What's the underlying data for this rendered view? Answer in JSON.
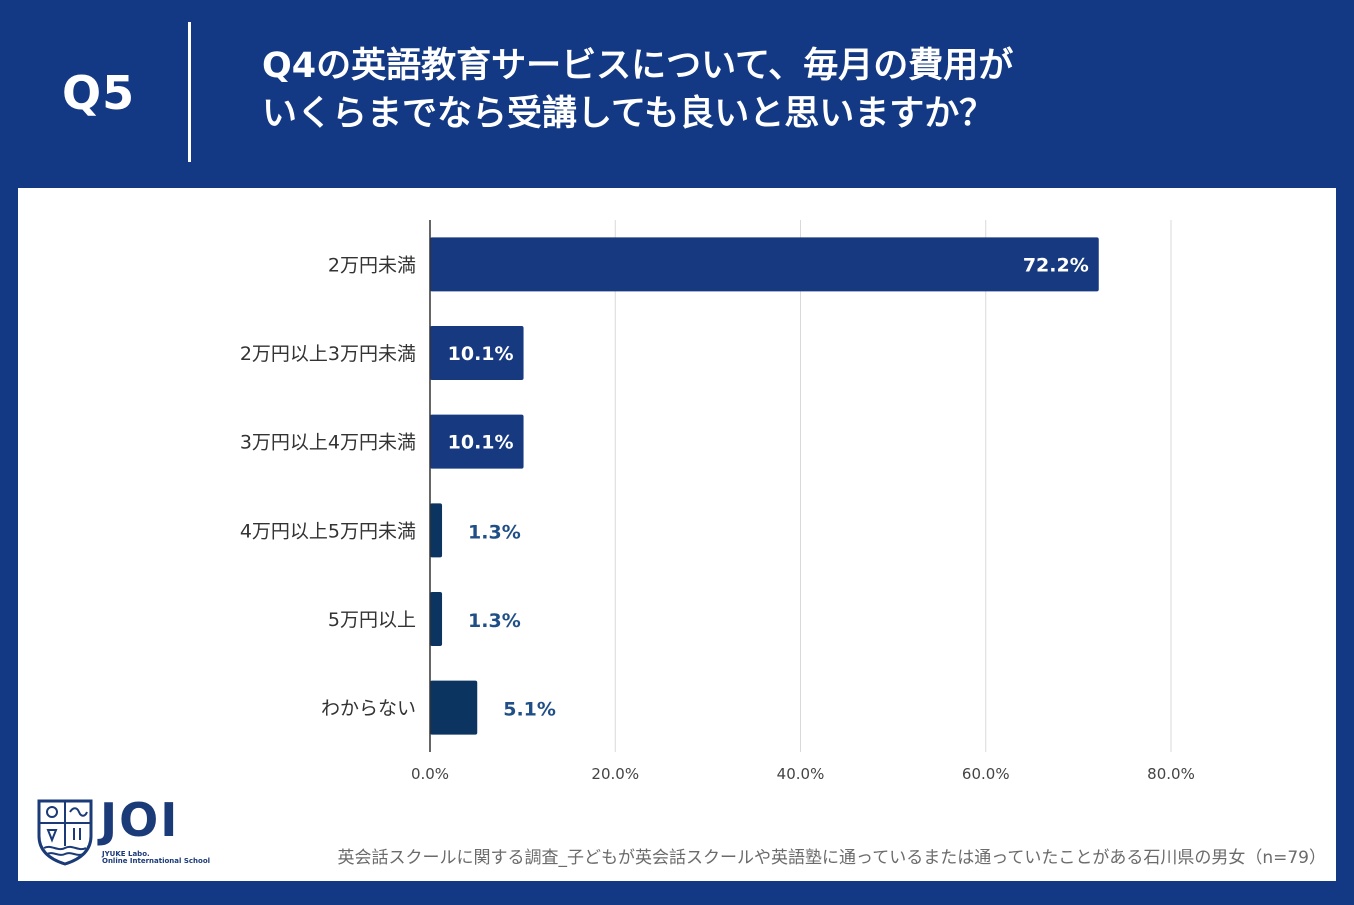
{
  "header": {
    "q_number": "Q5",
    "question_lines": [
      "Q4の英語教育サービスについて、毎月の費用が",
      "いくらまでなら受講しても良いと思いますか？"
    ]
  },
  "colors": {
    "background": "#133985",
    "bar_main": "#17397f",
    "bar_dark": "#0b3560",
    "label_outside": "#1f4f86",
    "grid": "#d9d9d9",
    "axis": "#333333"
  },
  "chart_data": {
    "type": "bar",
    "orientation": "horizontal",
    "categories": [
      "2万円未満",
      "2万円以上3万円未満",
      "3万円以上4万円未満",
      "4万円以上5万円未満",
      "5万円以上",
      "わからない"
    ],
    "values": [
      72.2,
      10.1,
      10.1,
      1.3,
      1.3,
      5.1
    ],
    "value_labels": [
      "72.2%",
      "10.1%",
      "10.1%",
      "1.3%",
      "1.3%",
      "5.1%"
    ],
    "xlim": [
      0,
      80
    ],
    "xticks": [
      0,
      20,
      40,
      60,
      80
    ],
    "xtick_labels": [
      "0.0%",
      "20.0%",
      "40.0%",
      "60.0%",
      "80.0%"
    ],
    "grid": true,
    "legend": "none",
    "title": "",
    "xlabel": "",
    "ylabel": ""
  },
  "logo": {
    "name": "JOI",
    "sub_line1": "JYUKE Labo.",
    "sub_line2": "Online International School"
  },
  "footnote": "英会話スクールに関する調査_子どもが英会話スクールや英語塾に通っているまたは通っていたことがある石川県の男女（n=79）"
}
